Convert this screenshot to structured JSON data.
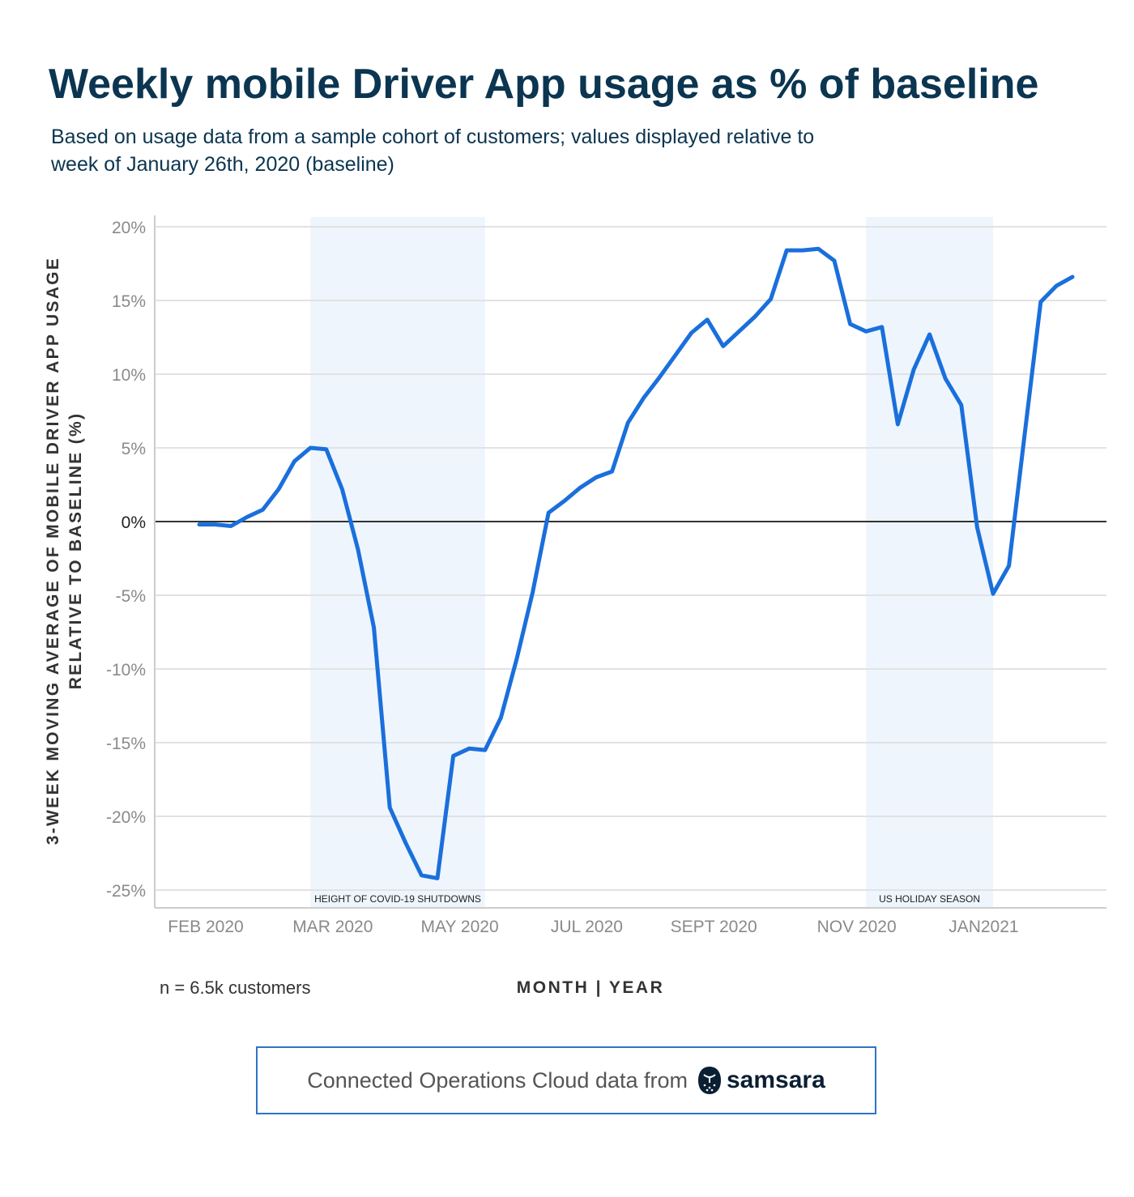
{
  "header": {
    "title": "Weekly mobile Driver App usage as % of baseline",
    "subtitle": "Based on usage data from a sample cohort of customers; values displayed relative to week of January 26th, 2020 (baseline)"
  },
  "notes": {
    "sample_size": "n = 6.5k customers"
  },
  "footer": {
    "text": "Connected Operations Cloud data from",
    "brand": "samsara"
  },
  "colors": {
    "line": "#1a6fdc",
    "band": "#eef5fd",
    "grid": "#e2e2e2",
    "zero": "#333333"
  },
  "chart_data": {
    "type": "line",
    "title": "Weekly mobile Driver App usage as % of baseline",
    "xlabel": "MONTH | YEAR",
    "ylabel_lines": [
      "3-WEEK MOVING AVERAGE OF MOBILE DRIVER APP USAGE",
      "RELATIVE TO BASELINE (%)"
    ],
    "ylim": [
      -25,
      20
    ],
    "yticks": [
      20,
      15,
      10,
      5,
      0,
      -5,
      -10,
      -15,
      -20,
      -25
    ],
    "ytick_labels": [
      "20%",
      "15%",
      "10%",
      "5%",
      "0%",
      "-5%",
      "-10%",
      "-15%",
      "-20%",
      "-25%"
    ],
    "xtick_labels": [
      "FEB 2020",
      "MAR 2020",
      "MAY 2020",
      "JUL 2020",
      "SEPT 2020",
      "NOV 2020",
      "JAN2021"
    ],
    "grid": true,
    "legend": "none",
    "shaded_regions": [
      {
        "label": "HEIGHT OF COVID-19 SHUTDOWNS",
        "start_week": 7,
        "end_week": 18
      },
      {
        "label": "US HOLIDAY SEASON",
        "start_week": 42,
        "end_week": 50
      }
    ],
    "series": [
      {
        "values": [
          -0.2,
          -0.2,
          -0.3,
          0.3,
          0.8,
          2.2,
          4.1,
          5.0,
          4.9,
          2.2,
          -1.9,
          -7.2,
          -19.4,
          -21.8,
          -24.0,
          -24.2,
          -15.9,
          -15.4,
          -15.5,
          -13.3,
          -9.3,
          -4.8,
          0.6,
          1.4,
          2.3,
          3.0,
          3.4,
          6.7,
          8.4,
          9.8,
          11.3,
          12.8,
          13.7,
          11.9,
          12.9,
          13.9,
          15.1,
          18.4,
          18.4,
          18.5,
          17.7,
          13.4,
          12.9,
          13.2,
          6.6,
          10.3,
          12.7,
          9.7,
          7.9,
          -0.4,
          -4.9,
          -3.0,
          6.0,
          14.9,
          16.0,
          16.6
        ]
      }
    ]
  }
}
